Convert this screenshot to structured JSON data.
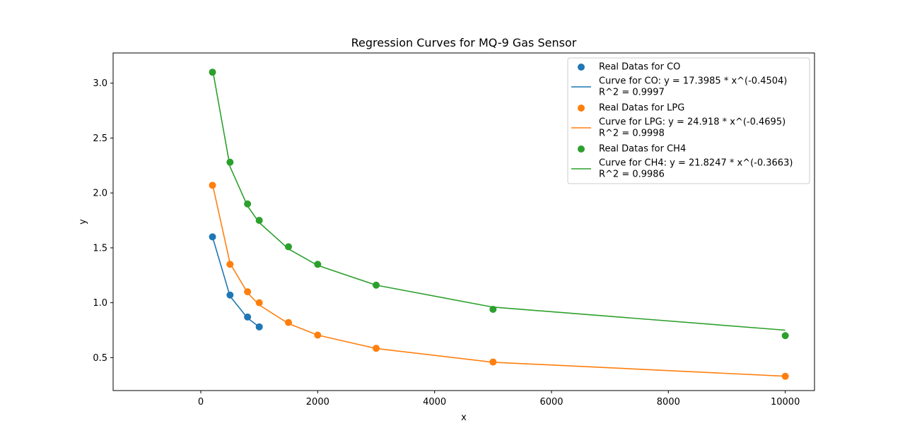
{
  "chart_data": {
    "type": "scatter",
    "title": "Regression Curves for MQ-9 Gas Sensor",
    "xlabel": "x",
    "ylabel": "y",
    "xlim": [
      -1500,
      10500
    ],
    "ylim": [
      0.2,
      3.275
    ],
    "xticks": [
      0,
      2000,
      4000,
      6000,
      8000,
      10000
    ],
    "xtick_labels": [
      "0",
      "2000",
      "4000",
      "6000",
      "8000",
      "10000"
    ],
    "yticks": [
      0.5,
      1.0,
      1.5,
      2.0,
      2.5,
      3.0
    ],
    "ytick_labels": [
      "0.5",
      "1.0",
      "1.5",
      "2.0",
      "2.5",
      "3.0"
    ],
    "grid": false,
    "legend_position": "top-right",
    "series": [
      {
        "kind": "points",
        "name": "Real Datas for CO",
        "color": "#1f77b4",
        "x": [
          200,
          500,
          800,
          1000
        ],
        "y": [
          1.6,
          1.07,
          0.87,
          0.78
        ]
      },
      {
        "kind": "curve",
        "name": "Curve for CO: y = 17.3985 * x^(-0.4504)",
        "name_line2": "R^2 = 0.9997",
        "color": "#1f77b4",
        "x": [
          200,
          500,
          800,
          1000
        ],
        "y": [
          1.6,
          1.06,
          0.86,
          0.78
        ]
      },
      {
        "kind": "points",
        "name": "Real Datas for LPG",
        "color": "#ff7f0e",
        "x": [
          200,
          500,
          800,
          1000,
          1500,
          2000,
          3000,
          5000,
          10000
        ],
        "y": [
          2.07,
          1.35,
          1.1,
          1.0,
          0.82,
          0.705,
          0.585,
          0.46,
          0.33
        ]
      },
      {
        "kind": "curve",
        "name": "Curve for LPG: y = 24.918 * x^(-0.4695)",
        "name_line2": "R^2 = 0.9998",
        "color": "#ff7f0e",
        "x": [
          200,
          500,
          800,
          1000,
          1500,
          2000,
          3000,
          5000,
          10000
        ],
        "y": [
          2.08,
          1.36,
          1.09,
          0.98,
          0.81,
          0.705,
          0.583,
          0.458,
          0.331
        ]
      },
      {
        "kind": "points",
        "name": "Real Datas for CH4",
        "color": "#2ca02c",
        "x": [
          200,
          500,
          800,
          1000,
          1500,
          2000,
          3000,
          5000,
          10000
        ],
        "y": [
          3.1,
          2.28,
          1.9,
          1.75,
          1.51,
          1.35,
          1.16,
          0.94,
          0.7
        ]
      },
      {
        "kind": "curve",
        "name": "Curve for CH4: y = 21.8247 * x^(-0.3663)",
        "name_line2": "R^2 = 0.9986",
        "color": "#2ca02c",
        "x": [
          200,
          500,
          800,
          1000,
          1500,
          2000,
          3000,
          5000,
          10000
        ],
        "y": [
          3.13,
          2.24,
          1.88,
          1.73,
          1.49,
          1.34,
          1.16,
          0.96,
          0.75
        ]
      }
    ]
  }
}
